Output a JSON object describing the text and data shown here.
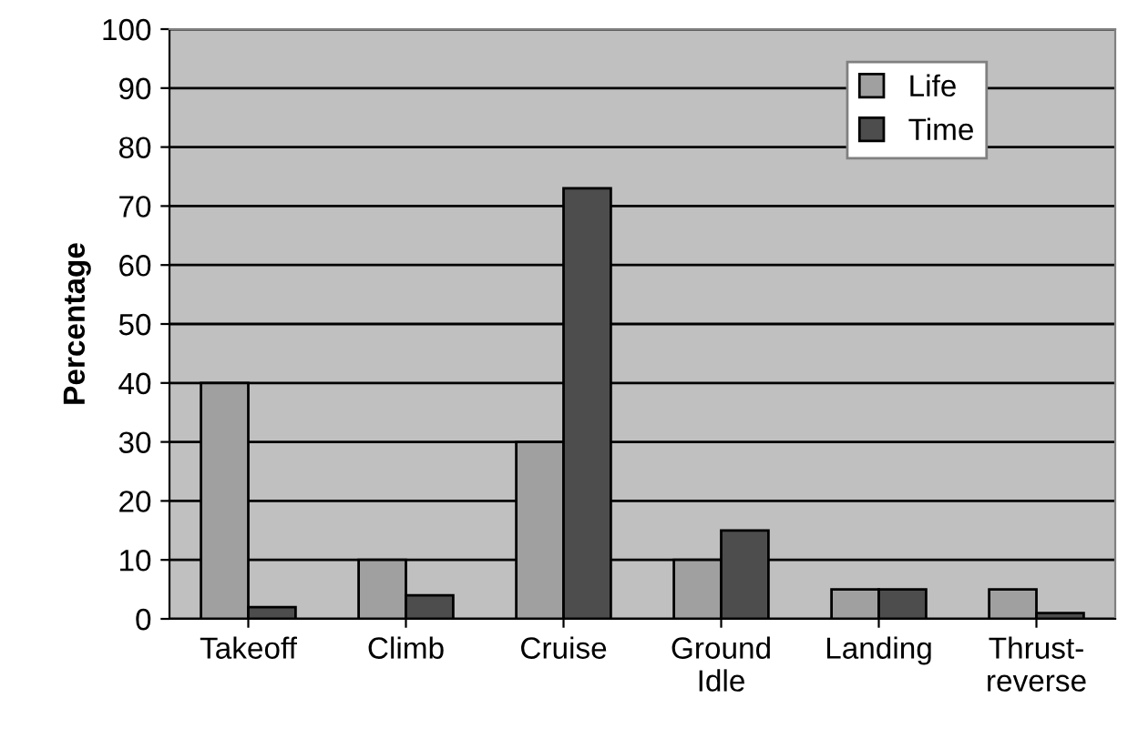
{
  "chart_data": {
    "type": "bar",
    "ylabel": "Percentage",
    "categories": [
      "Takeoff",
      "Climb",
      "Cruise",
      "Ground\nIdle",
      "Landing",
      "Thrust-\nreverse"
    ],
    "series": [
      {
        "name": "Life",
        "color": "#a0a0a0",
        "values": [
          40,
          10,
          30,
          10,
          5,
          5
        ]
      },
      {
        "name": "Time",
        "color": "#4d4d4d",
        "values": [
          2,
          4,
          73,
          15,
          5,
          1
        ]
      }
    ],
    "ylim": [
      0,
      100
    ],
    "yticks": [
      0,
      10,
      20,
      30,
      40,
      50,
      60,
      70,
      80,
      90,
      100
    ],
    "grid": "y",
    "legend": "top right"
  }
}
